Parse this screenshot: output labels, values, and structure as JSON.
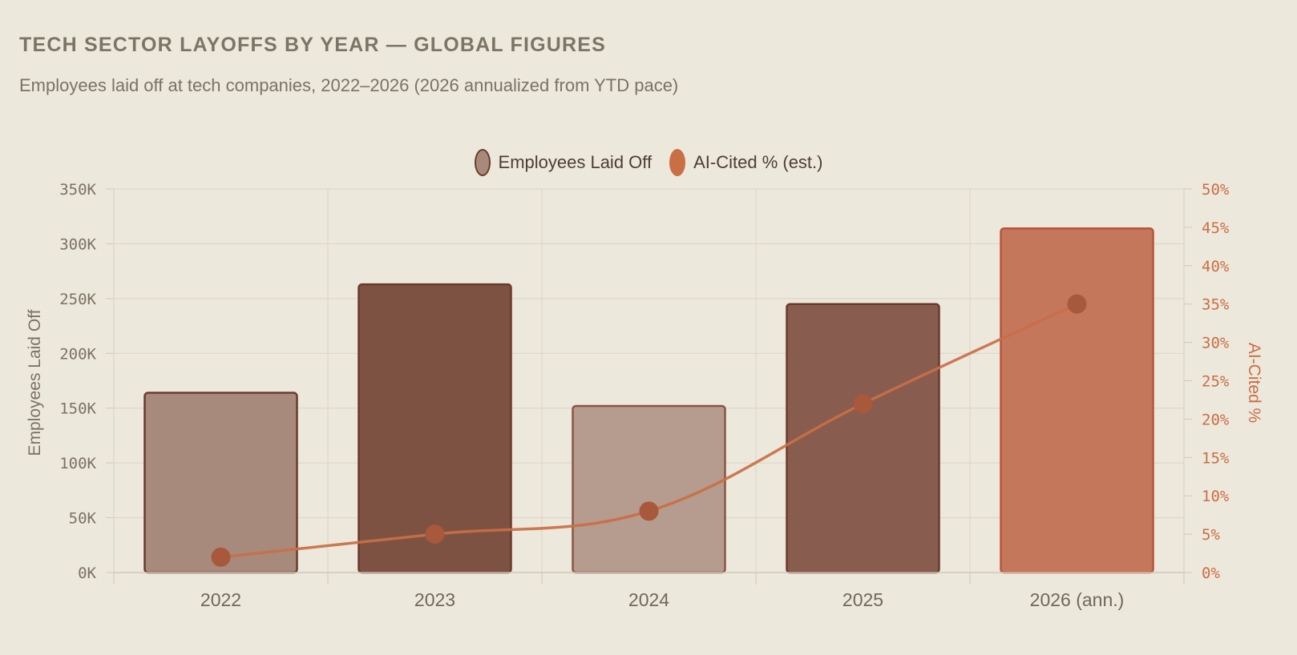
{
  "title": "TECH SECTOR LAYOFFS BY YEAR — GLOBAL FIGURES",
  "subtitle": "Employees laid off at tech companies, 2022–2026 (2026 annualized from YTD pace)",
  "legend": {
    "bars_label": "Employees Laid Off",
    "line_label": "AI-Cited % (est.)",
    "position": "top-center"
  },
  "colors": {
    "background": "#ede8dc",
    "bar_fills": [
      "#a78a7c",
      "#7d5242",
      "#b59c8e",
      "#885c4e",
      "#c5775b"
    ],
    "bar_strokes": [
      "#6b3a2c",
      "#6b3a2c",
      "#8a5545",
      "#6b3a2c",
      "#b5563d"
    ],
    "line": "#c96f45",
    "line_points": "#a8583b",
    "right_axis": "#c96f45",
    "left_axis": "#7a7264",
    "grid": "#dad4c4"
  },
  "chart_data": {
    "type": "bar",
    "categories": [
      "2022",
      "2023",
      "2024",
      "2025",
      "2026 (ann.)"
    ],
    "series": [
      {
        "name": "Employees Laid Off",
        "type": "bar",
        "axis": "left",
        "values": [
          164000,
          263000,
          152000,
          245000,
          314000
        ]
      },
      {
        "name": "AI-Cited % (est.)",
        "type": "line",
        "axis": "right",
        "values": [
          2,
          5,
          8,
          22,
          35
        ]
      }
    ],
    "ylabel": "Employees Laid Off",
    "y2label": "AI-Cited %",
    "ylim": [
      0,
      350000
    ],
    "y2lim": [
      0,
      50
    ],
    "yticks": [
      "0K",
      "50K",
      "100K",
      "150K",
      "200K",
      "250K",
      "300K",
      "350K"
    ],
    "y2ticks": [
      "0%",
      "5%",
      "10%",
      "15%",
      "20%",
      "25%",
      "30%",
      "35%",
      "40%",
      "45%",
      "50%"
    ],
    "grid": true
  }
}
